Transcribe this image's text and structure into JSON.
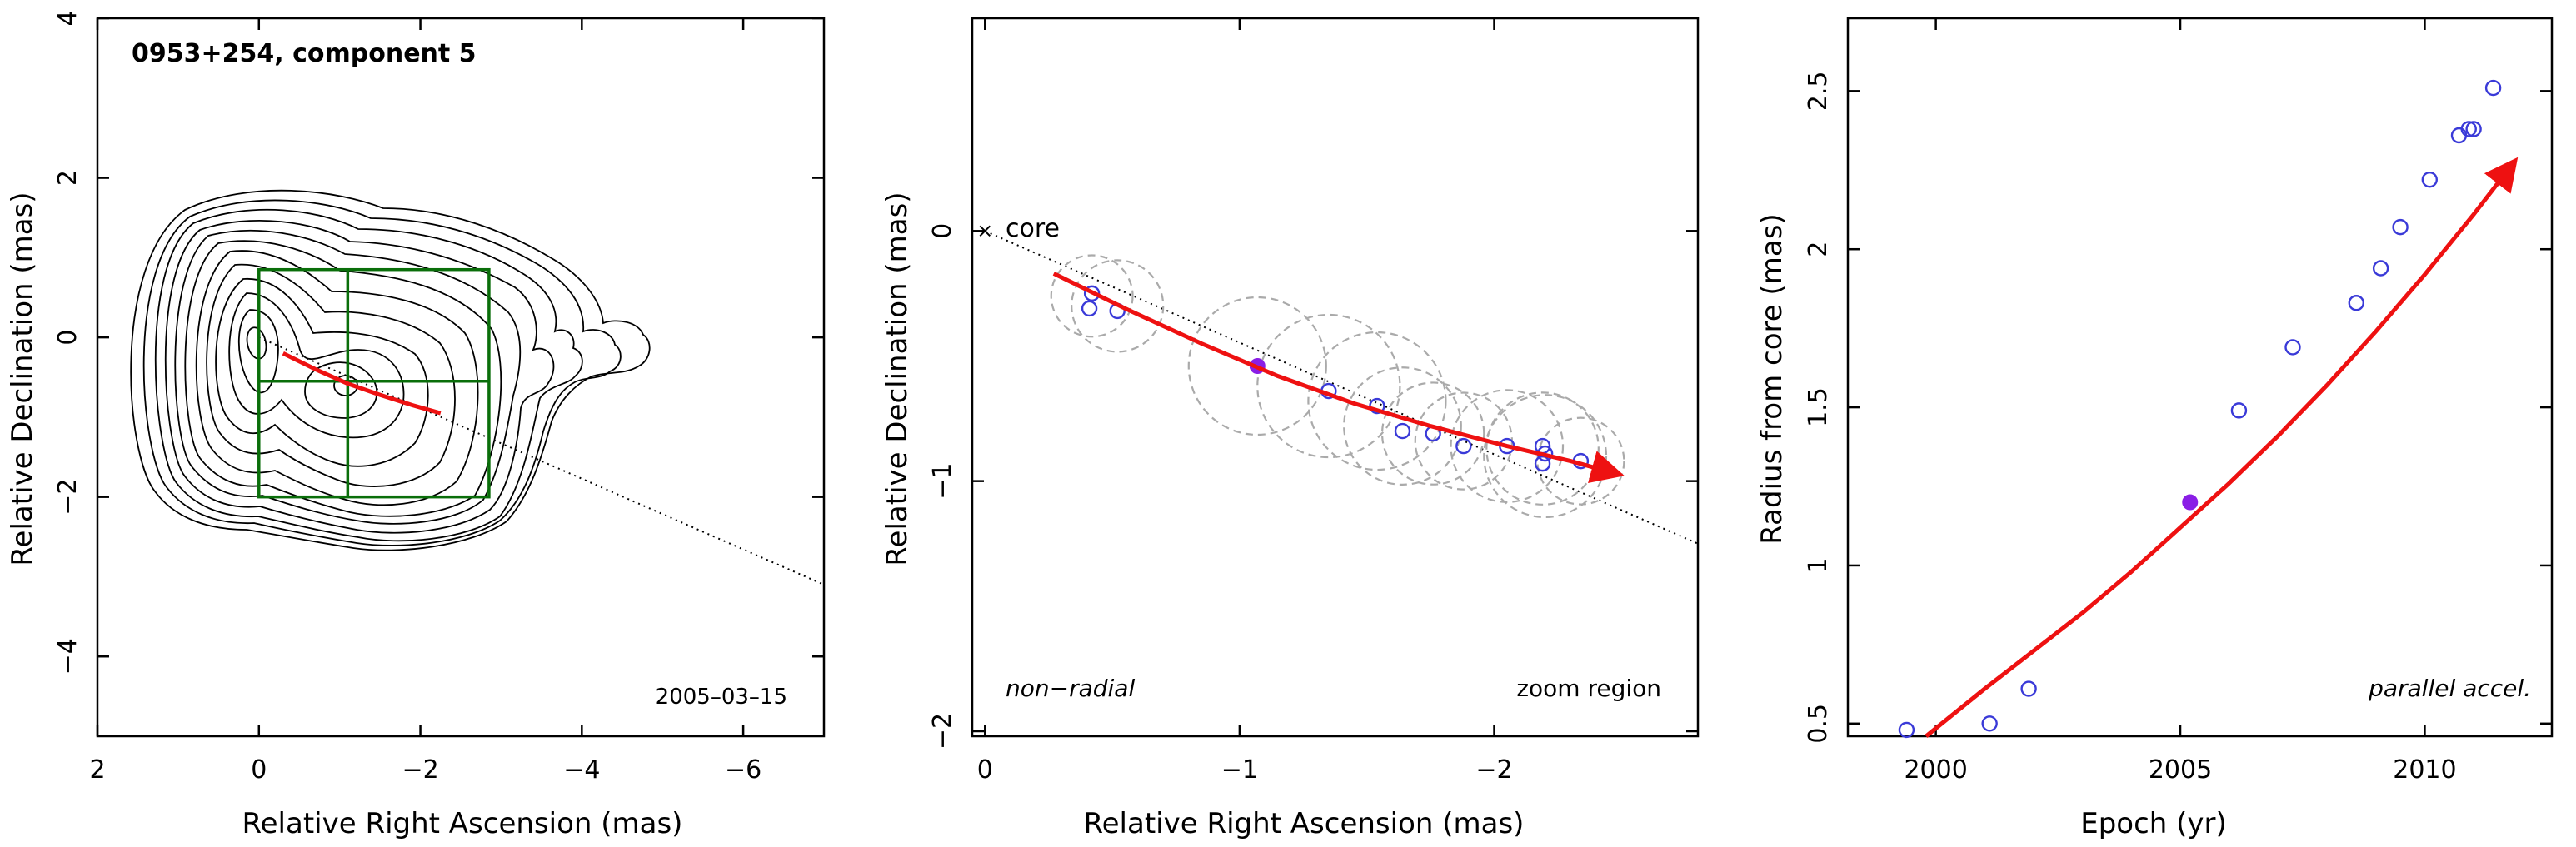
{
  "colors": {
    "fit_curve": "#ee1111",
    "zoom_box": "#0a6e0a",
    "open_points": "#3a3ad8",
    "filled_point": "#8a1ee6",
    "feature_circles": "#aaaaaa"
  },
  "chart_data": [
    {
      "type": "scatter",
      "panel": "left",
      "title": "0953+254, component 5",
      "annotation": "2005–03–15",
      "xlabel": "Relative Right Ascension (mas)",
      "ylabel": "Relative Declination (mas)",
      "xlim": [
        2,
        -7
      ],
      "ylim": [
        -5,
        4
      ],
      "xticks": [
        2,
        0,
        -2,
        -4,
        -6
      ],
      "xticklabels": [
        "2",
        "0",
        "−2",
        "−4",
        "−6"
      ],
      "yticks": [
        4,
        2,
        0,
        -2,
        -4
      ],
      "yticklabels": [
        "4",
        "2",
        "0",
        "−2",
        "−4"
      ],
      "zoom_box": {
        "x": [
          0,
          -2.85
        ],
        "y": [
          -2.0,
          0.85
        ],
        "crosshair": [
          -1.1,
          -0.55
        ]
      },
      "direction_line": {
        "from": [
          0,
          0
        ],
        "to": [
          -7,
          -3.1
        ]
      },
      "fit_curve": {
        "x": [
          -0.3,
          -0.7,
          -1.1,
          -1.5,
          -1.9,
          -2.25
        ],
        "y": [
          -0.2,
          -0.4,
          -0.58,
          -0.72,
          -0.85,
          -0.95
        ]
      }
    },
    {
      "type": "scatter",
      "panel": "middle",
      "core_label": "core",
      "annotation_left": "non−radial",
      "annotation_right": "zoom region",
      "xlabel": "Relative Right Ascension (mas)",
      "ylabel": "Relative Declination (mas)",
      "xlim": [
        0.05,
        -2.8
      ],
      "ylim": [
        -2.02,
        0.85
      ],
      "xticks": [
        0,
        -1,
        -2
      ],
      "xticklabels": [
        "0",
        "−1",
        "−2"
      ],
      "yticks": [
        0,
        -1,
        -2
      ],
      "yticklabels": [
        "0",
        "−1",
        "−2"
      ],
      "core": [
        0,
        0
      ],
      "points": [
        {
          "x": -0.42,
          "y": -0.25
        },
        {
          "x": -0.41,
          "y": -0.31
        },
        {
          "x": -0.52,
          "y": -0.32
        },
        {
          "x": -1.35,
          "y": -0.64
        },
        {
          "x": -1.54,
          "y": -0.7
        },
        {
          "x": -1.64,
          "y": -0.8
        },
        {
          "x": -1.76,
          "y": -0.81
        },
        {
          "x": -1.88,
          "y": -0.86
        },
        {
          "x": -2.05,
          "y": -0.86
        },
        {
          "x": -2.19,
          "y": -0.86
        },
        {
          "x": -2.2,
          "y": -0.89
        },
        {
          "x": -2.19,
          "y": -0.93
        },
        {
          "x": -2.34,
          "y": -0.92
        }
      ],
      "filled_point": {
        "x": -1.07,
        "y": -0.54
      },
      "feature_circles": [
        {
          "x": -0.42,
          "y": -0.26,
          "r": 0.16
        },
        {
          "x": -0.52,
          "y": -0.3,
          "r": 0.18
        },
        {
          "x": -1.07,
          "y": -0.54,
          "r": 0.27
        },
        {
          "x": -1.35,
          "y": -0.62,
          "r": 0.28
        },
        {
          "x": -1.54,
          "y": -0.68,
          "r": 0.27
        },
        {
          "x": -1.64,
          "y": -0.78,
          "r": 0.23
        },
        {
          "x": -1.76,
          "y": -0.81,
          "r": 0.2
        },
        {
          "x": -1.88,
          "y": -0.84,
          "r": 0.19
        },
        {
          "x": -2.05,
          "y": -0.86,
          "r": 0.22
        },
        {
          "x": -2.19,
          "y": -0.87,
          "r": 0.22
        },
        {
          "x": -2.2,
          "y": -0.9,
          "r": 0.24
        },
        {
          "x": -2.34,
          "y": -0.92,
          "r": 0.17
        }
      ],
      "direction_line": {
        "from": [
          0,
          0
        ],
        "to": [
          -2.8,
          -1.25
        ]
      },
      "fit_curve": {
        "x": [
          -0.27,
          -0.55,
          -0.85,
          -1.15,
          -1.45,
          -1.75,
          -2.05,
          -2.3,
          -2.48
        ],
        "y": [
          -0.17,
          -0.31,
          -0.45,
          -0.58,
          -0.69,
          -0.78,
          -0.86,
          -0.92,
          -0.97
        ]
      }
    },
    {
      "type": "scatter",
      "panel": "right",
      "annotation": "parallel accel.",
      "xlabel": "Epoch (yr)",
      "ylabel": "Radius from core (mas)",
      "xlim": [
        1998.2,
        2012.6
      ],
      "ylim": [
        0.46,
        2.73
      ],
      "xticks": [
        2000,
        2005,
        2010
      ],
      "xticklabels": [
        "2000",
        "2005",
        "2010"
      ],
      "yticks": [
        0.5,
        1,
        1.5,
        2,
        2.5
      ],
      "yticklabels": [
        "0.5",
        "1",
        "1.5",
        "2",
        "2.5"
      ],
      "points": [
        {
          "x": 1999.4,
          "y": 0.48
        },
        {
          "x": 2001.1,
          "y": 0.5
        },
        {
          "x": 2001.9,
          "y": 0.61
        },
        {
          "x": 2006.2,
          "y": 1.49
        },
        {
          "x": 2007.3,
          "y": 1.69
        },
        {
          "x": 2008.6,
          "y": 1.83
        },
        {
          "x": 2009.1,
          "y": 1.94
        },
        {
          "x": 2009.5,
          "y": 2.07
        },
        {
          "x": 2010.1,
          "y": 2.22
        },
        {
          "x": 2010.7,
          "y": 2.36
        },
        {
          "x": 2010.9,
          "y": 2.38
        },
        {
          "x": 2011.0,
          "y": 2.38
        },
        {
          "x": 2011.4,
          "y": 2.51
        }
      ],
      "filled_point": {
        "x": 2005.2,
        "y": 1.2
      },
      "fit_curve": {
        "x": [
          1999.8,
          2001,
          2002,
          2003,
          2004,
          2005,
          2006,
          2007,
          2008,
          2009,
          2010,
          2011,
          2011.8
        ],
        "y": [
          0.46,
          0.61,
          0.73,
          0.85,
          0.98,
          1.12,
          1.26,
          1.41,
          1.57,
          1.74,
          1.92,
          2.11,
          2.27
        ]
      }
    }
  ]
}
